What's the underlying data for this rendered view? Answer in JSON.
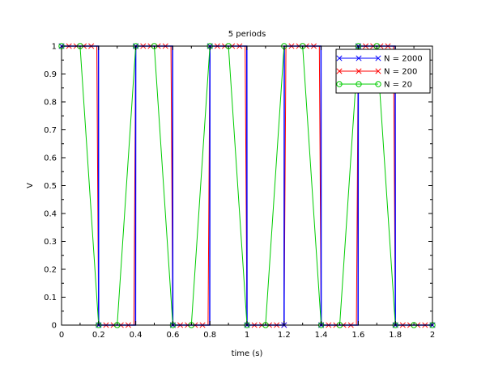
{
  "chart_data": {
    "type": "line",
    "title": "5 periods",
    "xlabel": "time (s)",
    "ylabel": "V",
    "xlim": [
      0,
      2
    ],
    "ylim": [
      0,
      1
    ],
    "x_ticks": [
      "0",
      "0.2",
      "0.4",
      "0.6",
      "0.8",
      "1",
      "1.2",
      "1.4",
      "1.6",
      "1.8",
      "2"
    ],
    "y_ticks": [
      "0",
      "0.1",
      "0.2",
      "0.3",
      "0.4",
      "0.5",
      "0.6",
      "0.7",
      "0.8",
      "0.9",
      "1"
    ],
    "grid": false,
    "legend_position": "top-right",
    "series": [
      {
        "name": "N = 2000",
        "color": "#0000ff",
        "marker": "x",
        "period": 0.4,
        "duty": 0.5,
        "samples": 2000,
        "marker_every": 0.2
      },
      {
        "name": "N = 200",
        "color": "#ff0000",
        "marker": "x",
        "period": 0.4,
        "duty": 0.5,
        "samples": 200,
        "marker_every": 0.04
      },
      {
        "name": "N = 20",
        "color": "#00cc00",
        "marker": "o",
        "period": 0.4,
        "duty": 0.5,
        "samples": 20,
        "marker_every": 0.1
      }
    ]
  }
}
